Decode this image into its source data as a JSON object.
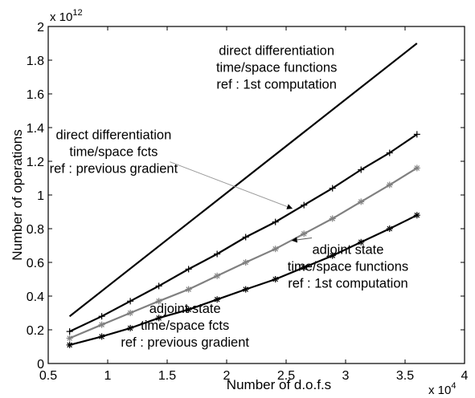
{
  "chart_data": {
    "type": "line",
    "title": "",
    "xlabel": "Number of d.o.f.s",
    "ylabel": "Number of operations",
    "xlim": [
      0.5,
      4
    ],
    "ylim": [
      0,
      2
    ],
    "x_ticks": [
      "0.5",
      "1",
      "1.5",
      "2",
      "2.5",
      "3",
      "3.5",
      "4"
    ],
    "y_ticks": [
      "0",
      "0.2",
      "0.4",
      "0.6",
      "0.8",
      "1",
      "1.2",
      "1.4",
      "1.6",
      "1.8",
      "2"
    ],
    "x_multiplier": {
      "base": "x 10",
      "exp": "4"
    },
    "y_multiplier": {
      "base": "x 10",
      "exp": "12"
    },
    "grid": false,
    "legend": "none",
    "series": [
      {
        "marker": "none",
        "color": "#000000",
        "x": [
          0.68,
          3.6
        ],
        "y": [
          0.28,
          1.9
        ]
      },
      {
        "marker": "+",
        "color": "#000000",
        "x": [
          0.68,
          0.95,
          1.19,
          1.43,
          1.68,
          1.92,
          2.16,
          2.41,
          2.65,
          2.89,
          3.13,
          3.37,
          3.6
        ],
        "y": [
          0.19,
          0.28,
          0.37,
          0.46,
          0.56,
          0.65,
          0.75,
          0.84,
          0.94,
          1.04,
          1.15,
          1.25,
          1.36
        ]
      },
      {
        "marker": "*",
        "color": "#808080",
        "x": [
          0.68,
          0.95,
          1.19,
          1.43,
          1.68,
          1.92,
          2.16,
          2.41,
          2.65,
          2.89,
          3.13,
          3.37,
          3.6
        ],
        "y": [
          0.15,
          0.23,
          0.3,
          0.37,
          0.44,
          0.52,
          0.6,
          0.68,
          0.77,
          0.86,
          0.96,
          1.06,
          1.16
        ]
      },
      {
        "marker": "*",
        "color": "#000000",
        "x": [
          0.68,
          0.95,
          1.19,
          1.43,
          1.68,
          1.92,
          2.16,
          2.41,
          2.65,
          2.89,
          3.13,
          3.37,
          3.6
        ],
        "y": [
          0.11,
          0.16,
          0.21,
          0.27,
          0.32,
          0.38,
          0.44,
          0.5,
          0.57,
          0.64,
          0.72,
          0.8,
          0.88
        ]
      }
    ],
    "annotations": [
      {
        "lines": [
          "direct differentiation",
          "time/space functions",
          "ref : 1st computation"
        ],
        "x": 2.42,
        "y": 1.83
      },
      {
        "lines": [
          "direct differentiation",
          "time/space fcts",
          "ref : previous gradient"
        ],
        "x": 1.05,
        "y": 1.33,
        "arrow_to": [
          2.55,
          0.92
        ]
      },
      {
        "lines": [
          "adjoint state",
          "time/space functions",
          "ref : 1st computation"
        ],
        "x": 3.02,
        "y": 0.65,
        "arrow_to": [
          2.55,
          0.73
        ]
      },
      {
        "lines": [
          "adjoint state",
          "time/space fcts",
          "ref : previous gradient"
        ],
        "x": 1.65,
        "y": 0.3
      }
    ]
  }
}
